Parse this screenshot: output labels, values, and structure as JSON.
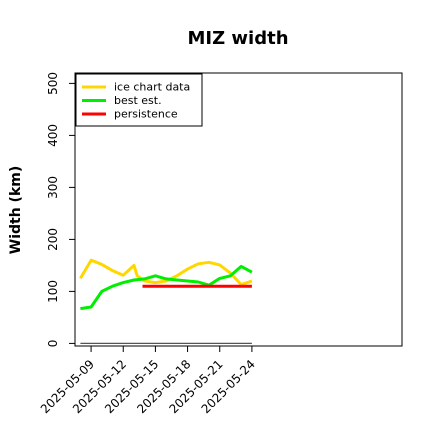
{
  "chart_data": {
    "type": "line",
    "title": "MIZ width",
    "xlabel": "",
    "ylabel": "Width (km)",
    "ylim": [
      -5,
      520
    ],
    "yticks": [
      0,
      100,
      200,
      300,
      400,
      500
    ],
    "xlim": [
      -1.5,
      29
    ],
    "xticks": [
      {
        "x": 0,
        "label": "2025-05-09"
      },
      {
        "x": 3,
        "label": "2025-05-12"
      },
      {
        "x": 6,
        "label": "2025-05-15"
      },
      {
        "x": 9,
        "label": "2025-05-18"
      },
      {
        "x": 12,
        "label": "2025-05-21"
      },
      {
        "x": 15,
        "label": "2025-05-24"
      }
    ],
    "legend_position": "top-left",
    "grid": false,
    "series": [
      {
        "name": "ice chart data",
        "color": "#ffd700",
        "points": [
          [
            -1,
            125
          ],
          [
            0,
            160
          ],
          [
            1,
            152
          ],
          [
            2,
            140
          ],
          [
            3,
            131
          ],
          [
            4,
            150
          ],
          [
            4.3,
            130
          ],
          [
            5,
            120
          ],
          [
            6,
            117
          ],
          [
            7,
            120
          ],
          [
            8,
            130
          ],
          [
            9,
            143
          ],
          [
            10,
            153
          ],
          [
            11,
            156
          ],
          [
            12,
            151
          ],
          [
            13,
            135
          ],
          [
            14,
            113
          ],
          [
            15,
            120
          ]
        ]
      },
      {
        "name": "best est.",
        "color": "#00ee00",
        "points": [
          [
            -1,
            67
          ],
          [
            0,
            70
          ],
          [
            1,
            100
          ],
          [
            2,
            110
          ],
          [
            3,
            117
          ],
          [
            4,
            122
          ],
          [
            5,
            124
          ],
          [
            6,
            130
          ],
          [
            7,
            124
          ],
          [
            8,
            122
          ],
          [
            9,
            120
          ],
          [
            10,
            118
          ],
          [
            11,
            112
          ],
          [
            12,
            125
          ],
          [
            13,
            130
          ],
          [
            14,
            148
          ],
          [
            15,
            137
          ]
        ]
      },
      {
        "name": "persistence",
        "color": "#ff0000",
        "points": [
          [
            4.8,
            110
          ],
          [
            15,
            110
          ]
        ]
      },
      {
        "name": "",
        "color": "#555555",
        "points": [
          [
            -1,
            0
          ],
          [
            15,
            0
          ]
        ]
      }
    ]
  }
}
